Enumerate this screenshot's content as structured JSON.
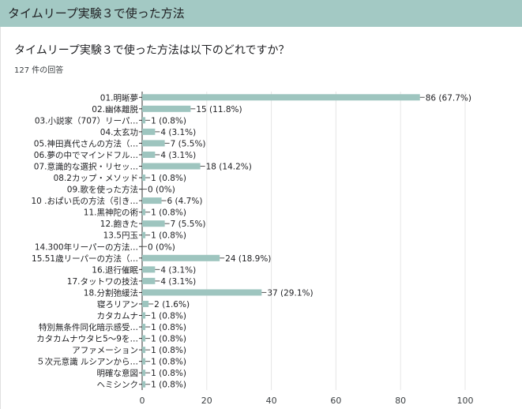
{
  "header": {
    "title": "タイムリープ実験３で使った方法"
  },
  "question": {
    "text": "タイムリープ実験３で使った方法は以下のどれですか？"
  },
  "response_count": "127 件の回答",
  "colors": {
    "bar": "#9ec5bf",
    "header": "#a3c9c4",
    "grid": "#e6e6e6"
  },
  "chart_data": {
    "type": "bar",
    "orientation": "horizontal",
    "categories": [
      "01.明晰夢",
      "02.幽体離脱",
      "03.小説家（707）リーパ…",
      "04.太玄功",
      "05.神田真代さんの方法（…",
      "06.夢の中でマインドフル…",
      "07.意識的な選択・リセッ…",
      "08.2カップ・メソッド",
      "09.歌を使った方法",
      "10 .おぱい氏の方法（引き…",
      "11.黒神陀の術",
      "12.飽きた",
      "13.5円玉",
      "14.300年リーパーの方法…",
      "15.51歳リーパーの方法（…",
      "16.退行催眠",
      "17.タットワの技法",
      "18.分割弛緩法",
      "寝ろリアン",
      "カタカムナ",
      "特別無条件同化暗示感受…",
      "カタカムナウタヒ5〜9を…",
      "アファメーション",
      "５次元意識 ルシアンから…",
      "明確な意図",
      "ヘミシンク"
    ],
    "values": [
      86,
      15,
      1,
      4,
      7,
      4,
      18,
      1,
      0,
      6,
      1,
      7,
      1,
      0,
      24,
      4,
      4,
      37,
      2,
      1,
      1,
      1,
      1,
      1,
      1,
      1
    ],
    "value_labels": [
      "86 (67.7%)",
      "15 (11.8%)",
      "1 (0.8%)",
      "4 (3.1%)",
      "7 (5.5%)",
      "4 (3.1%)",
      "18 (14.2%)",
      "1 (0.8%)",
      "0 (0%)",
      "6 (4.7%)",
      "1 (0.8%)",
      "7 (5.5%)",
      "1 (0.8%)",
      "0 (0%)",
      "24 (18.9%)",
      "4 (3.1%)",
      "4 (3.1%)",
      "37 (29.1%)",
      "2 (1.6%)",
      "1 (0.8%)",
      "1 (0.8%)",
      "1 (0.8%)",
      "1 (0.8%)",
      "1 (0.8%)",
      "1 (0.8%)",
      "1 (0.8%)"
    ],
    "xlim": [
      0,
      100
    ],
    "xticks": [
      "0",
      "20",
      "40",
      "60",
      "80",
      "100"
    ],
    "grid": true
  }
}
